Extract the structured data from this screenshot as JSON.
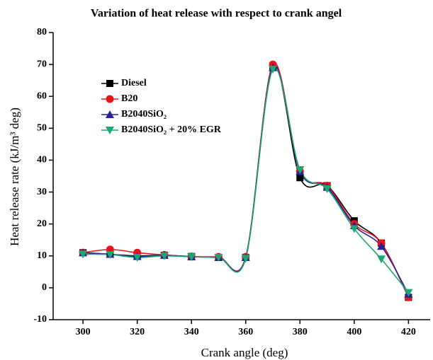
{
  "chart_data": {
    "type": "line",
    "title": "Variation of heat release with respect to crank angel",
    "x_label": "Crank angle (deg)",
    "y_label": "Heat release rate (kJ/m³ deg)",
    "x": [
      300,
      310,
      320,
      330,
      340,
      350,
      360,
      370,
      380,
      390,
      400,
      410,
      420
    ],
    "series": [
      {
        "name": "Diesel",
        "color": "#000000",
        "marker": "square",
        "values": [
          11,
          10.5,
          10,
          10.2,
          9.8,
          9.5,
          9.5,
          69.5,
          34.5,
          32,
          21,
          14,
          -3
        ]
      },
      {
        "name": "B20",
        "color": "#e8141c",
        "marker": "circle",
        "values": [
          11,
          12,
          11,
          10.3,
          9.8,
          9.7,
          9.7,
          70,
          36.5,
          32,
          20,
          14,
          -3
        ]
      },
      {
        "name": "B2040SiO₂",
        "color": "#2b1f9a",
        "marker": "triangle-up",
        "values": [
          11,
          10.5,
          9.8,
          10.2,
          9.7,
          9.6,
          9.5,
          69,
          36.5,
          31.5,
          19.5,
          13,
          -2
        ]
      },
      {
        "name": "B2040SiO₂ + 20% EGR",
        "color": "#18a874",
        "marker": "triangle-down",
        "values": [
          10.5,
          10.4,
          9.5,
          10,
          9.7,
          9.5,
          9.2,
          68.5,
          37,
          31,
          18.5,
          9,
          -1.5
        ]
      }
    ],
    "xlim": [
      289,
      428
    ],
    "ylim": [
      -10,
      80
    ],
    "xticks": [
      300,
      320,
      340,
      360,
      380,
      400,
      420
    ],
    "yticks": [
      -10,
      0,
      10,
      20,
      30,
      40,
      50,
      60,
      70,
      80
    ],
    "legend": "upper-left"
  }
}
